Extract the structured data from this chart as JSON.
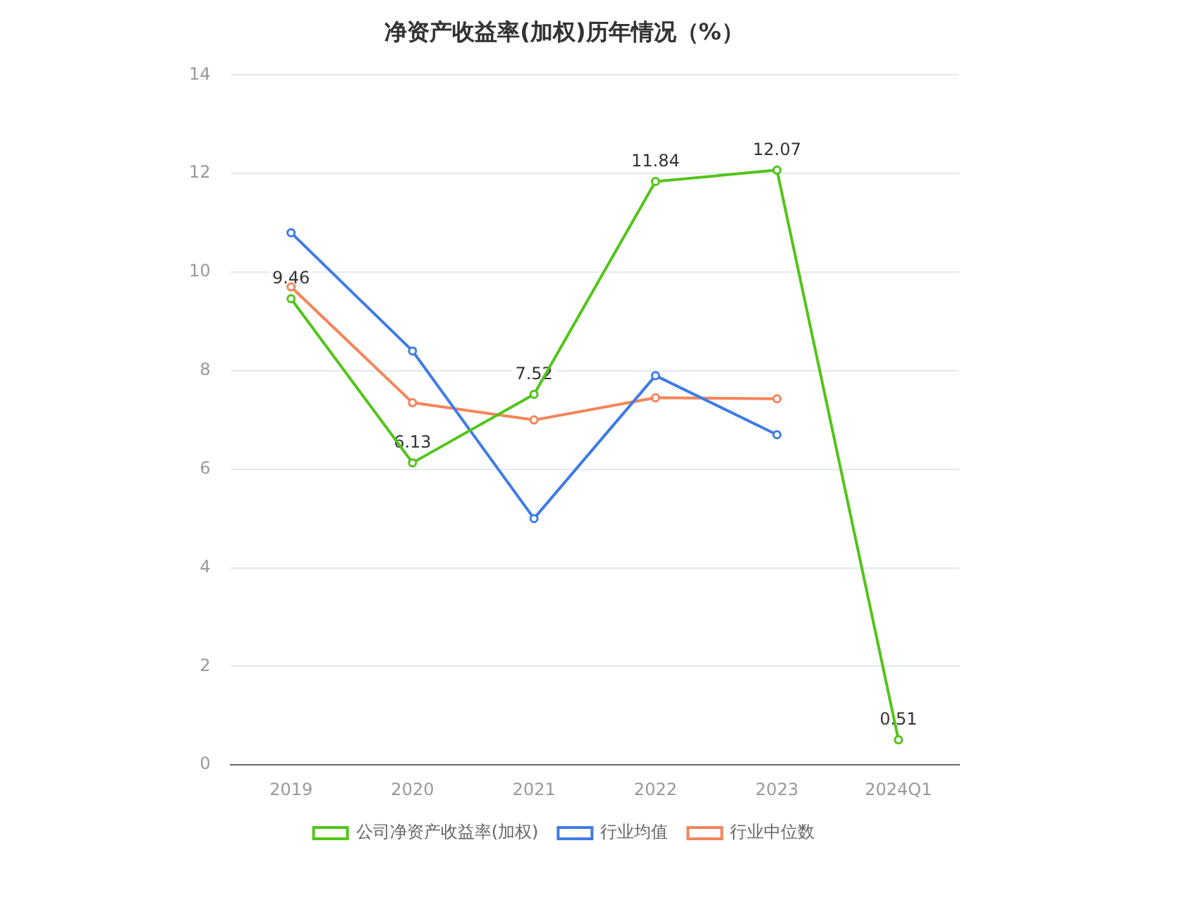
{
  "chart_data": {
    "type": "line",
    "title": "净资产收益率(加权)历年情况（%）",
    "categories": [
      "2019",
      "2020",
      "2021",
      "2022",
      "2023",
      "2024Q1"
    ],
    "series": [
      {
        "name": "公司净资产收益率(加权)",
        "color": "#52c41a",
        "values": [
          9.46,
          6.13,
          7.52,
          11.84,
          12.07,
          0.51
        ],
        "value_labels": [
          "9.46",
          "6.13",
          "7.52",
          "11.84",
          "12.07",
          "0.51"
        ]
      },
      {
        "name": "行业均值",
        "color": "#3e7be6",
        "values": [
          10.8,
          8.4,
          5.0,
          7.9,
          6.7,
          null
        ]
      },
      {
        "name": "行业中位数",
        "color": "#f5845a",
        "values": [
          9.7,
          7.35,
          7.0,
          7.45,
          7.43,
          null
        ]
      }
    ],
    "ylim": [
      0,
      14
    ],
    "yticks": [
      0,
      2,
      4,
      6,
      8,
      10,
      12,
      14
    ],
    "grid": "y",
    "legend": "bottom",
    "marker": "circle",
    "line_style": "solid"
  }
}
